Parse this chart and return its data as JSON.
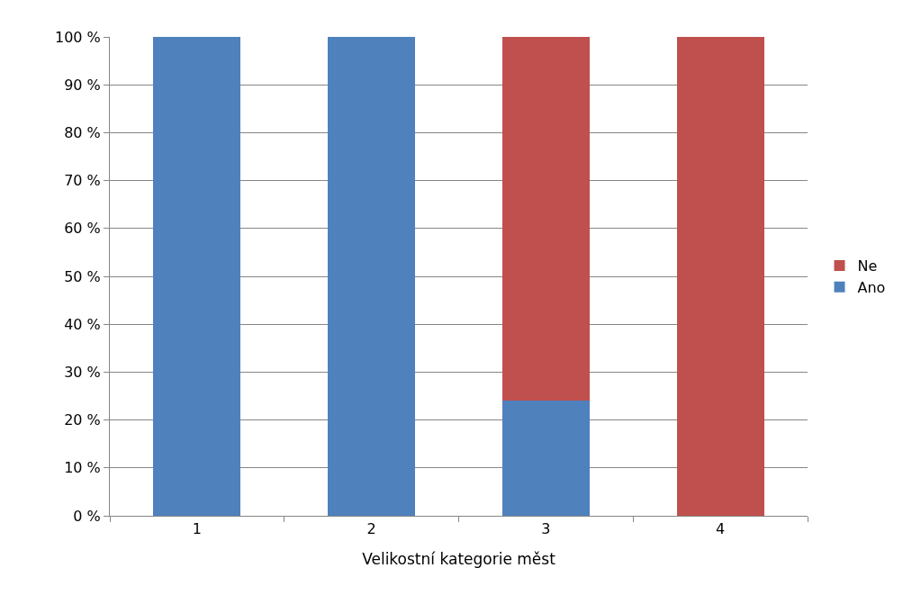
{
  "chart_data": {
    "type": "bar",
    "stacked": true,
    "xlabel": "Velikostní kategorie měst",
    "categories": [
      "1",
      "2",
      "3",
      "4"
    ],
    "series": [
      {
        "name": "Ano",
        "color": "#4f81bd",
        "values": [
          100,
          100,
          24,
          0
        ]
      },
      {
        "name": "Ne",
        "color": "#c0504d",
        "values": [
          0,
          0,
          76,
          100
        ]
      }
    ],
    "ylim": [
      0,
      100
    ],
    "yticks": [
      {
        "value": 0,
        "label": "0 %"
      },
      {
        "value": 10,
        "label": "10 %"
      },
      {
        "value": 20,
        "label": "20 %"
      },
      {
        "value": 30,
        "label": "30 %"
      },
      {
        "value": 40,
        "label": "40 %"
      },
      {
        "value": 50,
        "label": "50 %"
      },
      {
        "value": 60,
        "label": "60 %"
      },
      {
        "value": 70,
        "label": "70 %"
      },
      {
        "value": 80,
        "label": "80 %"
      },
      {
        "value": 90,
        "label": "90 %"
      },
      {
        "value": 100,
        "label": "100 %"
      }
    ],
    "grid": "y",
    "legend": "right"
  }
}
